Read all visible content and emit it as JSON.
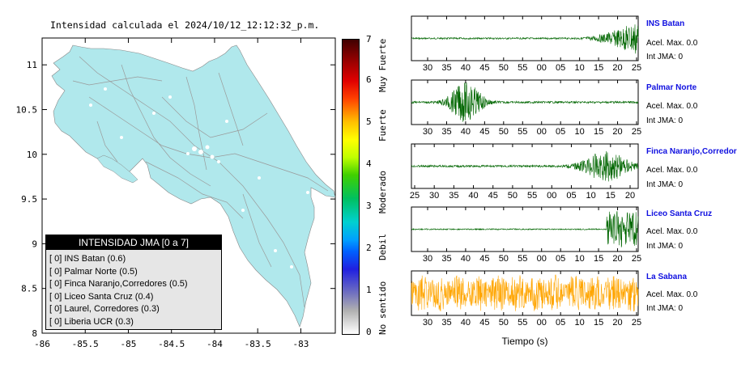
{
  "title": "Intensidad calculada el 2024/10/12_12:12:32_p.m.",
  "colors": {
    "land": "#b0e8ec",
    "sea": "#ffffff",
    "road": "#9a9a9a",
    "green": "#006600",
    "orange": "#ffa500",
    "name": "#1010e0"
  },
  "legend": {
    "header": "INTENSIDAD JMA [0 a 7]",
    "items": [
      "[ 0]  INS Batan (0.6)",
      "[ 0]  Palmar Norte (0.5)",
      "[ 0]  Finca Naranjo,Corredores (0.5)",
      "[ 0]  Liceo Santa Cruz (0.4)",
      "[ 0]  Laurel, Corredores (0.3)",
      "[ 0]  Liberia UCR (0.3)"
    ]
  },
  "colorbar": {
    "ticks": [
      "0",
      "1",
      "2",
      "3",
      "4",
      "5",
      "6",
      "7"
    ],
    "words": [
      "No sentido",
      "Debil",
      "Moderado",
      "Fuerte",
      "Muy Fuerte"
    ]
  },
  "chart_data": [
    {
      "type": "map",
      "xlim": [
        -86,
        -82.6
      ],
      "ylim": [
        8,
        11.3
      ],
      "xticks": [
        "-86",
        "-85.5",
        "-85",
        "-84.5",
        "-84",
        "-83.5",
        "-83"
      ],
      "yticks": [
        "8",
        "8.5",
        "9",
        "9.5",
        "10",
        "10.5",
        "11"
      ]
    },
    {
      "type": "line",
      "xlabel": "Tiempo (s)",
      "series": [
        {
          "name": "INS Batan",
          "acel": "Acel. Max. 0.0",
          "int": "Int JMA: 0",
          "xticks": [
            "30",
            "35",
            "40",
            "45",
            "50",
            "55",
            "00",
            "05",
            "10",
            "15",
            "20",
            "25"
          ],
          "color": "#006600"
        },
        {
          "name": "Palmar Norte",
          "acel": "Acel. Max. 0.0",
          "int": "Int JMA: 0",
          "xticks": [
            "30",
            "35",
            "40",
            "45",
            "50",
            "55",
            "00",
            "05",
            "10",
            "15",
            "20",
            "25"
          ],
          "color": "#006600"
        },
        {
          "name": "Finca Naranjo,Corredores",
          "acel": "Acel. Max. 0.0",
          "int": "Int JMA: 0",
          "xticks": [
            "25",
            "30",
            "35",
            "40",
            "45",
            "50",
            "55",
            "00",
            "05",
            "10",
            "15",
            "20"
          ],
          "color": "#006600"
        },
        {
          "name": "Liceo Santa Cruz",
          "acel": "Acel. Max. 0.0",
          "int": "Int JMA: 0",
          "xticks": [
            "30",
            "35",
            "40",
            "45",
            "50",
            "55",
            "00",
            "05",
            "10",
            "15",
            "20",
            "25"
          ],
          "color": "#006600"
        },
        {
          "name": "La Sabana",
          "acel": "Acel. Max. 0.0",
          "int": "Int JMA: 0",
          "xticks": [
            "30",
            "35",
            "40",
            "45",
            "50",
            "55",
            "00",
            "05",
            "10",
            "15",
            "20",
            "25"
          ],
          "color": "#ffa500"
        }
      ]
    }
  ]
}
